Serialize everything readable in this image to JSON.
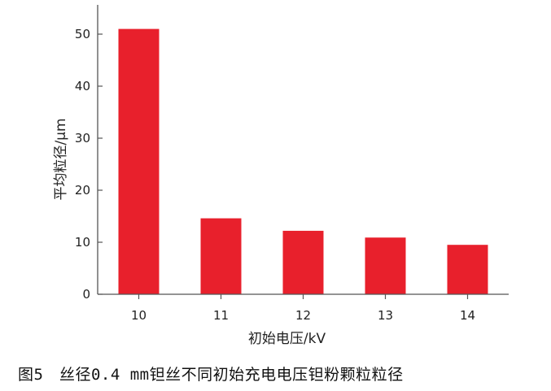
{
  "caption": "图5　丝径0.4 mm钽丝不同初始充电电压钽粉颗粒粒径",
  "chart_data": {
    "type": "bar",
    "title": "",
    "xlabel": "初始电压/kV",
    "ylabel": "平均粒径/μm",
    "categories": [
      "10",
      "11",
      "12",
      "13",
      "14"
    ],
    "values": [
      51,
      14.6,
      12.2,
      10.9,
      9.5
    ],
    "ylim": [
      0,
      55
    ],
    "yticks": [
      0,
      10,
      20,
      30,
      40,
      50
    ],
    "grid": false,
    "legend": "none",
    "bar_color": "#e8202c",
    "axis_color": "#555555"
  }
}
